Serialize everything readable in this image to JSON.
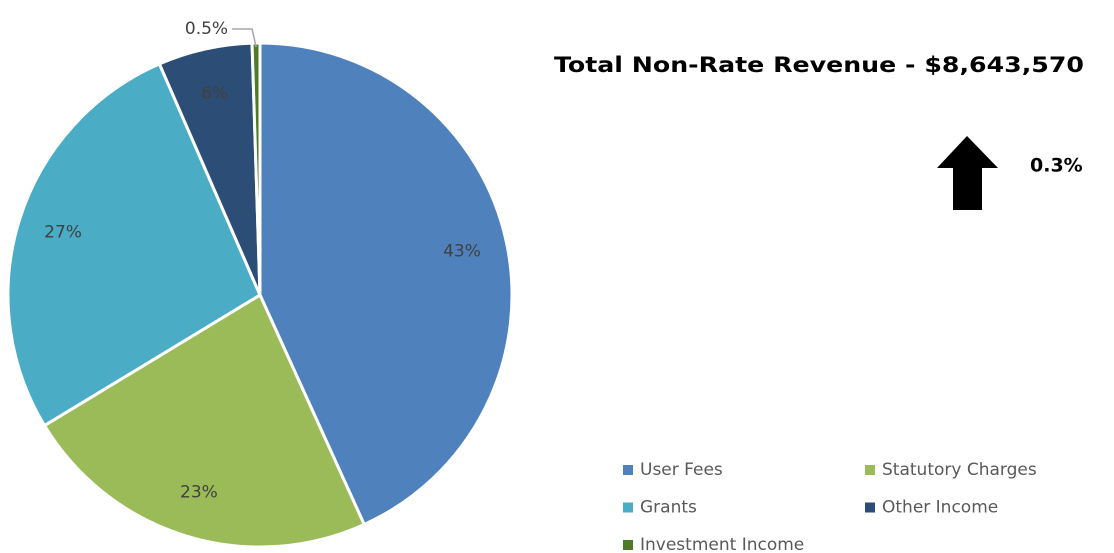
{
  "chart_data": {
    "type": "pie",
    "title": "Total Non-Rate Revenue - $8,643,570",
    "annotation": "0.3%",
    "categories": [
      "User Fees",
      "Statutory Charges",
      "Grants",
      "Other Income",
      "Investment Income"
    ],
    "values": [
      43,
      23,
      27,
      6,
      0.5
    ],
    "value_labels": [
      "43%",
      "23%",
      "27%",
      "6%",
      "0.5%"
    ],
    "colors": [
      "#4f81bd",
      "#9bbb59",
      "#4bacc6",
      "#2c4d75",
      "#4f7a28"
    ],
    "legend": "bottom-right"
  }
}
